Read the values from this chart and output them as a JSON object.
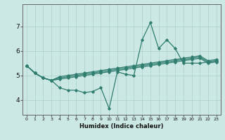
{
  "xlabel": "Humidex (Indice chaleur)",
  "bg_color": "#cce8e4",
  "line_color": "#2e7d6e",
  "grid_color": "#aacfcb",
  "x_ticks": [
    0,
    1,
    2,
    3,
    4,
    5,
    6,
    7,
    8,
    9,
    10,
    11,
    12,
    13,
    14,
    15,
    16,
    17,
    18,
    19,
    20,
    21,
    22,
    23
  ],
  "y_ticks": [
    4,
    5,
    6,
    7
  ],
  "xlim": [
    -0.5,
    23.5
  ],
  "ylim": [
    3.4,
    7.9
  ],
  "lines": [
    [
      5.4,
      5.1,
      4.9,
      4.8,
      4.5,
      4.4,
      4.4,
      4.3,
      4.35,
      4.5,
      3.65,
      5.15,
      5.05,
      5.0,
      6.45,
      7.15,
      6.1,
      6.45,
      6.1,
      5.5,
      5.5,
      5.5,
      5.55,
      5.6
    ],
    [
      5.4,
      5.1,
      4.9,
      4.8,
      4.85,
      4.9,
      4.95,
      5.0,
      5.05,
      5.1,
      5.15,
      5.2,
      5.25,
      5.3,
      5.35,
      5.4,
      5.45,
      5.5,
      5.55,
      5.6,
      5.65,
      5.7,
      5.5,
      5.55
    ],
    [
      5.4,
      5.1,
      4.9,
      4.8,
      4.9,
      4.95,
      5.0,
      5.05,
      5.1,
      5.15,
      5.2,
      5.25,
      5.3,
      5.35,
      5.4,
      5.45,
      5.5,
      5.55,
      5.6,
      5.65,
      5.7,
      5.75,
      5.55,
      5.6
    ],
    [
      5.4,
      5.1,
      4.9,
      4.8,
      4.95,
      5.0,
      5.05,
      5.1,
      5.15,
      5.2,
      5.25,
      5.3,
      5.35,
      5.4,
      5.45,
      5.5,
      5.55,
      5.6,
      5.65,
      5.7,
      5.75,
      5.8,
      5.6,
      5.65
    ]
  ]
}
